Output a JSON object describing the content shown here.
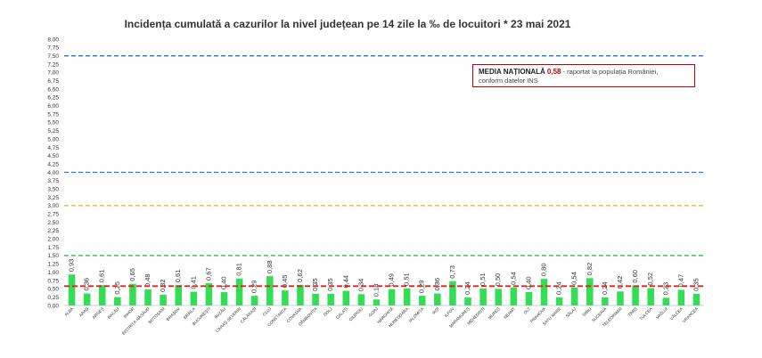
{
  "chart_data": {
    "type": "bar",
    "title": "Incidența cumulată a cazurilor la nivel județean pe 14 zile la ‰ de locuitori *  23 mai 2021",
    "ylim": [
      0,
      8
    ],
    "yticks": [
      "0,00",
      "0,25",
      "0,50",
      "0,75",
      "1,00",
      "1,25",
      "1,50",
      "1,75",
      "2,00",
      "2,25",
      "2,50",
      "2,75",
      "3,00",
      "3,25",
      "3,50",
      "3,75",
      "4,00",
      "4,25",
      "4,50",
      "4,75",
      "5,00",
      "5,25",
      "5,50",
      "5,75",
      "6,00",
      "6,25",
      "6,50",
      "6,75",
      "7,00",
      "7,25",
      "7,50",
      "7,75",
      "8,00"
    ],
    "categories": [
      "ALBA",
      "ARAD",
      "ARGEȘ",
      "BACĂU",
      "BIHOR",
      "BISTRIȚA-NĂSĂUD",
      "BOTOȘANI",
      "BRAȘOV",
      "BRĂILA",
      "BUCUREȘTI",
      "BUZĂU",
      "CARAȘ-SEVERIN",
      "CĂLĂRAȘI",
      "CLUJ",
      "CONSTANȚA",
      "COVASNA",
      "DÂMBOVIȚA",
      "DOLJ",
      "GALAȚI",
      "GIURGIU",
      "GORJ",
      "HARGHITA",
      "HUNEDOARA",
      "IALOMIȚA",
      "IAȘI",
      "ILFOV",
      "MARAMUREȘ",
      "MEHEDINȚI",
      "MUREȘ",
      "NEAMȚ",
      "OLT",
      "PRAHOVA",
      "SATU MARE",
      "SĂLAJ",
      "SIBIU",
      "SUCEAVA",
      "TELEORMAN",
      "TIMIȘ",
      "TULCEA",
      "VASLUI",
      "VÂLCEA",
      "VRANCEA"
    ],
    "values": [
      0.93,
      0.36,
      0.61,
      0.25,
      0.65,
      0.48,
      0.32,
      0.61,
      0.41,
      0.67,
      0.4,
      0.81,
      0.29,
      0.88,
      0.45,
      0.62,
      0.35,
      0.35,
      0.44,
      0.34,
      0.18,
      0.49,
      0.51,
      0.29,
      0.36,
      0.73,
      0.24,
      0.51,
      0.5,
      0.54,
      0.4,
      0.8,
      0.24,
      0.54,
      0.82,
      0.24,
      0.42,
      0.6,
      0.52,
      0.23,
      0.47,
      0.35
    ],
    "labels": [
      "0,93",
      "0,36",
      "0,61",
      "0,25",
      "0,65",
      "0,48",
      "0,32",
      "0,61",
      "0,41",
      "0,67",
      "0,40",
      "0,81",
      "0,29",
      "0,88",
      "0,45",
      "0,62",
      "0,35",
      "0,35",
      "0,44",
      "0,34",
      "0,18",
      "0,49",
      "0,51",
      "0,29",
      "0,36",
      "0,73",
      "0,24",
      "0,51",
      "0,50",
      "0,54",
      "0,40",
      "0,80",
      "0,24",
      "0,54",
      "0,82",
      "0,24",
      "0,42",
      "0,60",
      "0,52",
      "0,23",
      "0,47",
      "0,35"
    ],
    "bar_color": "#33dd55",
    "reference_lines": [
      {
        "value": 7.5,
        "color": "#2f6fd6",
        "style": "dashed"
      },
      {
        "value": 4.0,
        "color": "#2f6fd6",
        "style": "dashed"
      },
      {
        "value": 3.0,
        "color": "#e6b422",
        "style": "dashed"
      },
      {
        "value": 1.5,
        "color": "#33bb55",
        "style": "dashed"
      },
      {
        "value": 0.58,
        "color": "#dd2222",
        "style": "dashed"
      }
    ],
    "legend": {
      "label": "MEDIA NAȚIONALĂ",
      "value": "0,58",
      "text_line1": " - raportat la populația României,",
      "text_line2": "conform datelor INS",
      "position": "top-right"
    }
  }
}
